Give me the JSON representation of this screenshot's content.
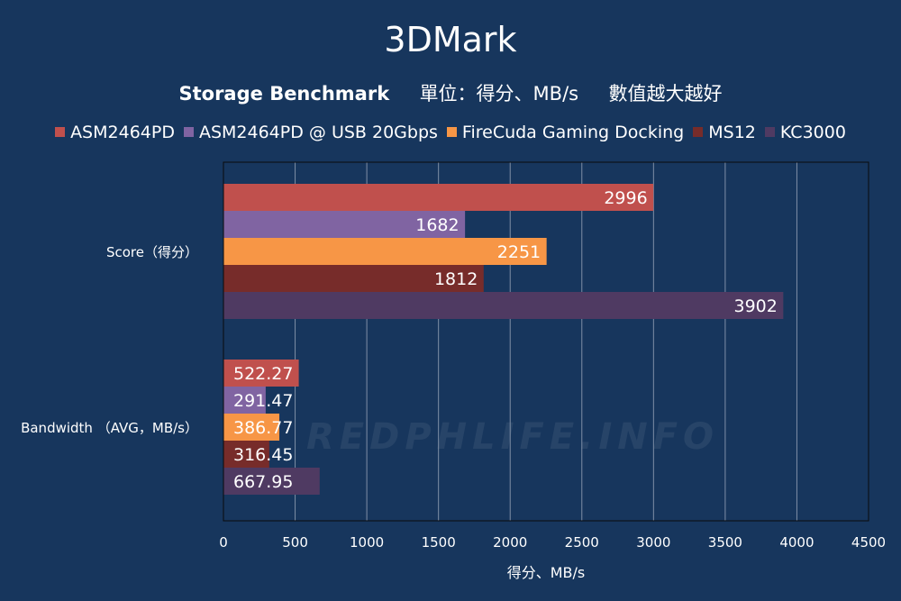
{
  "title": "3DMark",
  "subtitle": {
    "main": "Storage Benchmark",
    "unit": "單位：得分、MB/s",
    "note": "數值越大越好"
  },
  "watermark": "REDPHLIFE.INFO",
  "chart_data": {
    "type": "bar",
    "orientation": "horizontal",
    "categories": [
      "Score（得分）",
      "Bandwidth （AVG，MB/s）"
    ],
    "series": [
      {
        "name": "ASM2464PD",
        "color": "#c0504d",
        "values": [
          2996,
          522.27
        ]
      },
      {
        "name": "ASM2464PD @ USB 20Gbps",
        "color": "#8064a2",
        "values": [
          1682,
          291.47
        ]
      },
      {
        "name": "FireCuda Gaming Docking",
        "color": "#f79646",
        "values": [
          2251,
          386.77
        ]
      },
      {
        "name": "MS12",
        "color": "#772c2a",
        "values": [
          1812,
          316.45
        ]
      },
      {
        "name": "KC3000",
        "color": "#4f3a62",
        "values": [
          3902,
          667.95
        ]
      }
    ],
    "data_labels": [
      [
        "2996",
        "1682",
        "2251",
        "1812",
        "3902"
      ],
      [
        "522.27",
        "291.47",
        "386.77",
        "316.45",
        "667.95"
      ]
    ],
    "xlabel": "得分、MB/s",
    "ylabel": "",
    "xlim": [
      0,
      4500
    ],
    "xticks": [
      0,
      500,
      1000,
      1500,
      2000,
      2500,
      3000,
      3500,
      4000,
      4500
    ],
    "grid": true,
    "legend_position": "top"
  },
  "colors": {
    "background": "#17365d",
    "gridline": "#7f8fa6",
    "axis": "#0a0a0a",
    "text": "#ffffff"
  }
}
